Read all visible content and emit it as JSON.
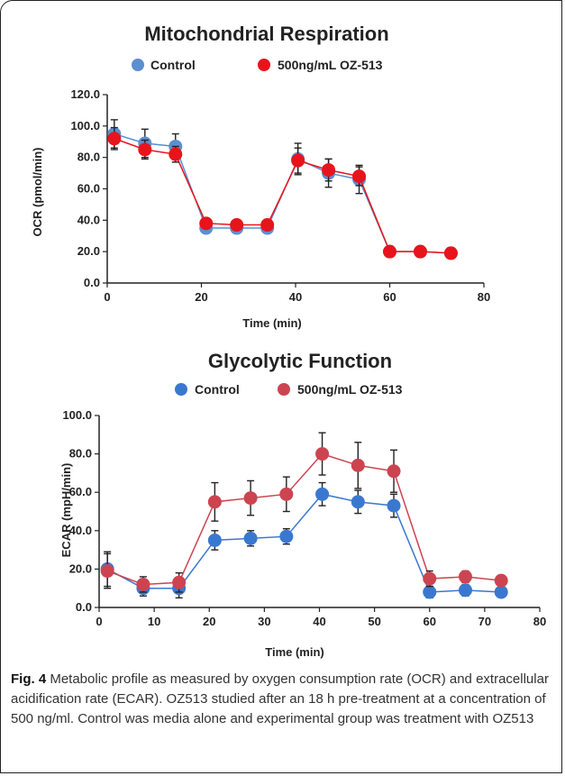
{
  "chart_data": [
    {
      "type": "line",
      "title": "Mitochondrial Respiration",
      "xlabel": "Time (min)",
      "ylabel": "OCR (pmol/min)",
      "xlim": [
        0,
        80
      ],
      "ylim": [
        0,
        120
      ],
      "xticks": [
        "0",
        "20",
        "40",
        "60",
        "80"
      ],
      "yticks": [
        "0.0",
        "20.0",
        "40.0",
        "60.0",
        "80.0",
        "100.0",
        "120.0"
      ],
      "x": [
        1.5,
        8,
        14.5,
        21,
        27.5,
        34,
        40.5,
        47,
        53.5,
        60,
        66.5,
        73
      ],
      "series": [
        {
          "name": "Control",
          "color": "#5b8fd0",
          "values": [
            95,
            89,
            87,
            35,
            35,
            35,
            79,
            70,
            66,
            20,
            20,
            19
          ],
          "errors": [
            9,
            9,
            8,
            2,
            2,
            2,
            10,
            9,
            9,
            2,
            2,
            1
          ]
        },
        {
          "name": "500ng/mL OZ-513",
          "color": "#e8141c",
          "values": [
            92,
            85,
            82,
            38,
            37,
            37,
            78,
            72,
            68,
            20,
            20,
            19
          ],
          "errors": [
            7,
            6,
            5,
            2,
            2,
            2,
            8,
            7,
            6,
            2,
            2,
            1
          ]
        }
      ],
      "grid": false,
      "legend": "top"
    },
    {
      "type": "line",
      "title": "Glycolytic Function",
      "xlabel": "Time (min)",
      "ylabel": "ECAR (mpH/min)",
      "xlim": [
        0,
        80
      ],
      "ylim": [
        0,
        100
      ],
      "xticks": [
        "0",
        "10",
        "20",
        "30",
        "40",
        "50",
        "60",
        "70",
        "80"
      ],
      "yticks": [
        "0.0",
        "20.0",
        "40.0",
        "60.0",
        "80.0",
        "100.0"
      ],
      "x": [
        1.5,
        8,
        14.5,
        21,
        27.5,
        34,
        40.5,
        47,
        53.5,
        60,
        66.5,
        73
      ],
      "series": [
        {
          "name": "Control",
          "color": "#3a78d0",
          "values": [
            20,
            10,
            10,
            35,
            36,
            37,
            59,
            55,
            53,
            8,
            9,
            8
          ],
          "errors": [
            9,
            4,
            5,
            5,
            4,
            4,
            6,
            6,
            6,
            3,
            3,
            2
          ]
        },
        {
          "name": "500ng/mL OZ-513",
          "color": "#cc4450",
          "values": [
            19,
            12,
            13,
            55,
            57,
            59,
            80,
            74,
            71,
            15,
            16,
            14
          ],
          "errors": [
            9,
            4,
            5,
            10,
            9,
            9,
            11,
            12,
            11,
            4,
            3,
            2
          ]
        }
      ],
      "grid": false,
      "legend": "top"
    }
  ],
  "caption": {
    "label": "Fig. 4",
    "text": " Metabolic profile as measured by oxygen consumption rate (OCR) and extracellular acidification rate (ECAR). OZ513 studied after an 18 h pre-treatment at a concentration of 500 ng/ml. Control was media alone and experimental group was treatment with OZ513"
  }
}
